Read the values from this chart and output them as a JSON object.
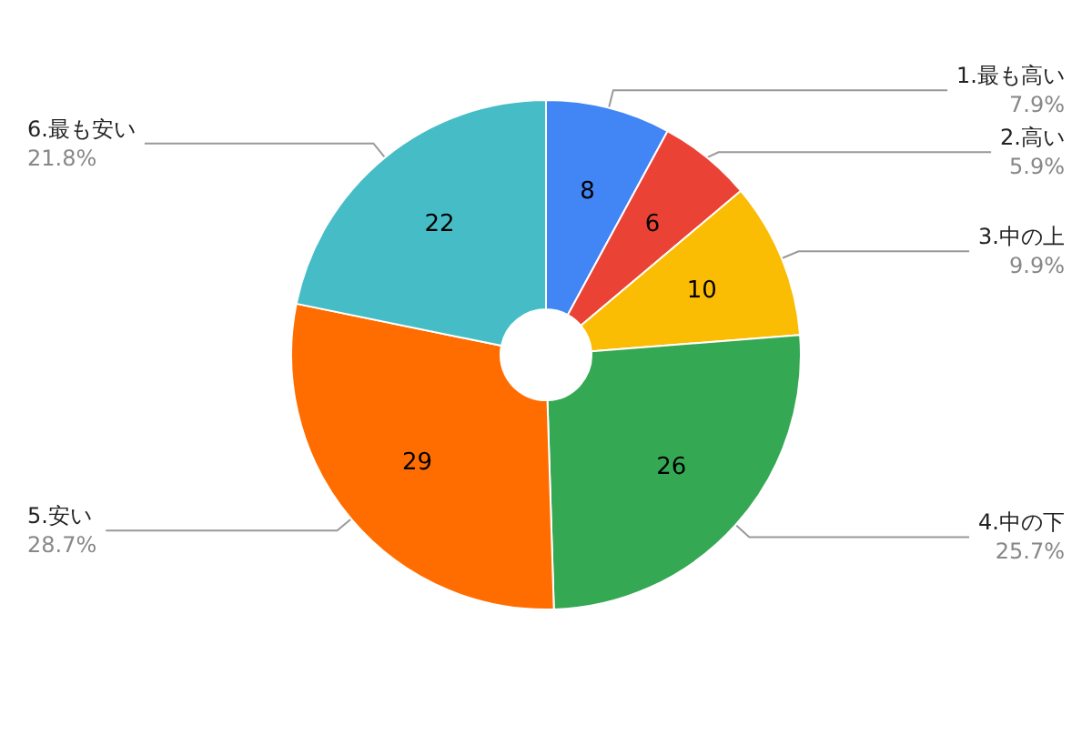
{
  "chart_data": {
    "type": "donut",
    "categories": [
      "1.最も高い",
      "2.高い",
      "3.中の上",
      "4.中の下",
      "5.安い",
      "6.最も安い"
    ],
    "values": [
      8,
      6,
      10,
      26,
      29,
      22
    ],
    "colors": [
      "#4285f4",
      "#ea4335",
      "#fbbc04",
      "#34a853",
      "#ff6d01",
      "#46bdc6"
    ],
    "data_labels": true,
    "annotations": [
      "7.9%",
      "5.9%",
      "9.9%",
      "25.7%",
      "28.7%",
      "21.8%"
    ],
    "legend": false
  }
}
